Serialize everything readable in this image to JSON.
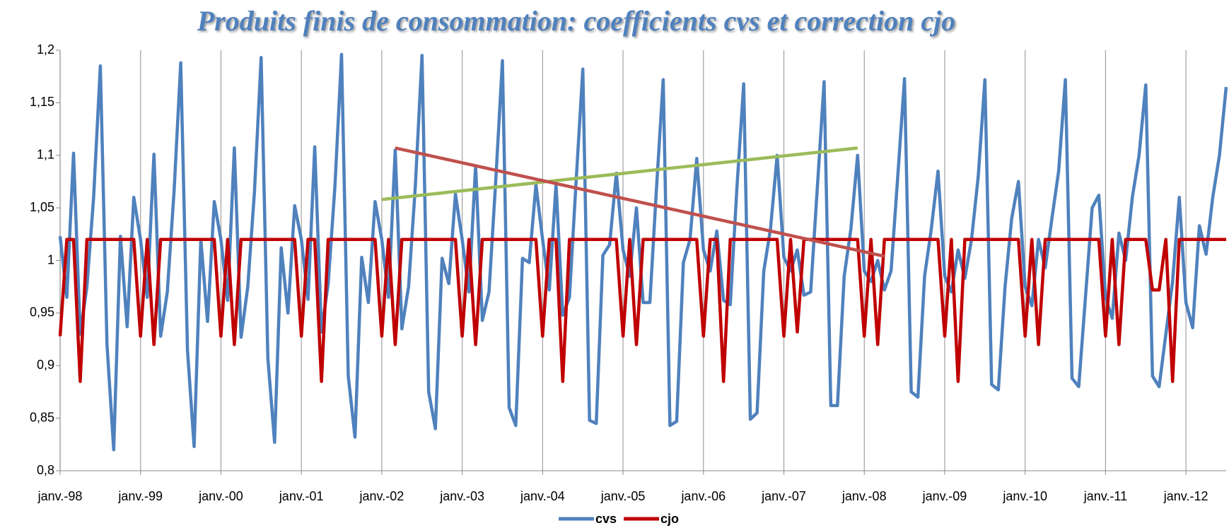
{
  "chart_data": {
    "type": "line",
    "title": "Produits finis de consommation: coefficients cvs et correction cjo",
    "categories": [
      "janv.-98",
      null,
      null,
      null,
      null,
      null,
      null,
      null,
      null,
      null,
      null,
      null,
      "janv.-99",
      null,
      null,
      null,
      null,
      null,
      null,
      null,
      null,
      null,
      null,
      null,
      "janv.-00",
      null,
      null,
      null,
      null,
      null,
      null,
      null,
      null,
      null,
      null,
      null,
      "janv.-01",
      null,
      null,
      null,
      null,
      null,
      null,
      null,
      null,
      null,
      null,
      null,
      "janv.-02",
      null,
      null,
      null,
      null,
      null,
      null,
      null,
      null,
      null,
      null,
      null,
      "janv.-03",
      null,
      null,
      null,
      null,
      null,
      null,
      null,
      null,
      null,
      null,
      null,
      "janv.-04",
      null,
      null,
      null,
      null,
      null,
      null,
      null,
      null,
      null,
      null,
      null,
      "janv.-05",
      null,
      null,
      null,
      null,
      null,
      null,
      null,
      null,
      null,
      null,
      null,
      "janv.-06",
      null,
      null,
      null,
      null,
      null,
      null,
      null,
      null,
      null,
      null,
      null,
      "janv.-07",
      null,
      null,
      null,
      null,
      null,
      null,
      null,
      null,
      null,
      null,
      null,
      "janv.-08",
      null,
      null,
      null,
      null,
      null,
      null,
      null,
      null,
      null,
      null,
      null,
      "janv.-09",
      null,
      null,
      null,
      null,
      null,
      null,
      null,
      null,
      null,
      null,
      null,
      "janv.-10",
      null,
      null,
      null,
      null,
      null,
      null,
      null,
      null,
      null,
      null,
      null,
      "janv.-11",
      null,
      null,
      null,
      null,
      null,
      null,
      null,
      null,
      null,
      null,
      null,
      "janv.-12",
      null,
      null,
      null,
      null,
      null,
      null
    ],
    "series": [
      {
        "name": "cvs",
        "color": "#4f81bd",
        "values": [
          1.023,
          0.965,
          1.102,
          0.93,
          0.975,
          1.06,
          1.185,
          0.92,
          0.82,
          1.023,
          0.937,
          1.06,
          1.02,
          0.965,
          1.101,
          0.928,
          0.97,
          1.065,
          1.188,
          0.915,
          0.823,
          1.02,
          0.942,
          1.056,
          1.02,
          0.962,
          1.107,
          0.927,
          0.975,
          1.065,
          1.193,
          0.907,
          0.827,
          1.012,
          0.95,
          1.052,
          1.02,
          0.963,
          1.108,
          0.932,
          0.978,
          1.07,
          1.196,
          0.89,
          0.832,
          1.003,
          0.96,
          1.056,
          1.02,
          0.965,
          1.105,
          0.935,
          0.975,
          1.07,
          1.195,
          0.875,
          0.84,
          1.002,
          0.978,
          1.063,
          1.02,
          0.97,
          1.09,
          0.943,
          0.97,
          1.075,
          1.19,
          0.86,
          0.843,
          1.002,
          0.998,
          1.072,
          1.02,
          0.972,
          1.072,
          0.948,
          0.965,
          1.075,
          1.182,
          0.848,
          0.845,
          1.005,
          1.015,
          1.083,
          1.01,
          0.985,
          1.05,
          0.96,
          0.96,
          1.07,
          1.172,
          0.843,
          0.847,
          0.998,
          1.02,
          1.097,
          1.01,
          0.99,
          1.028,
          0.962,
          0.958,
          1.07,
          1.168,
          0.849,
          0.855,
          0.99,
          1.03,
          1.1,
          1.003,
          0.99,
          1.01,
          0.967,
          0.97,
          1.07,
          1.17,
          0.862,
          0.862,
          0.985,
          1.03,
          1.1,
          0.99,
          0.98,
          1.0,
          0.972,
          0.99,
          1.08,
          1.173,
          0.875,
          0.87,
          0.985,
          1.03,
          1.085,
          0.985,
          0.97,
          1.01,
          0.983,
          1.02,
          1.08,
          1.172,
          0.882,
          0.877,
          0.975,
          1.04,
          1.075,
          0.975,
          0.957,
          1.02,
          0.993,
          1.04,
          1.085,
          1.172,
          0.888,
          0.88,
          0.965,
          1.05,
          1.062,
          0.965,
          0.945,
          1.026,
          1.0,
          1.06,
          1.1,
          1.167,
          0.89,
          0.88,
          0.93,
          0.98,
          1.06,
          0.96,
          0.936,
          1.033,
          1.006,
          1.06,
          1.1,
          1.165
        ]
      },
      {
        "name": "cjo",
        "color": "#c00000",
        "values": [
          0.928,
          1.02,
          1.02,
          0.885,
          1.02,
          1.02,
          1.02,
          1.02,
          1.02,
          1.02,
          1.02,
          1.02,
          0.928,
          1.02,
          0.92,
          1.02,
          1.02,
          1.02,
          1.02,
          1.02,
          1.02,
          1.02,
          1.02,
          1.02,
          0.928,
          1.02,
          0.92,
          1.02,
          1.02,
          1.02,
          1.02,
          1.02,
          1.02,
          1.02,
          1.02,
          1.02,
          0.928,
          1.02,
          1.02,
          0.885,
          1.02,
          1.02,
          1.02,
          1.02,
          1.02,
          1.02,
          1.02,
          1.02,
          0.928,
          1.02,
          0.92,
          1.02,
          1.02,
          1.02,
          1.02,
          1.02,
          1.02,
          1.02,
          1.02,
          1.02,
          0.928,
          1.02,
          0.92,
          1.02,
          1.02,
          1.02,
          1.02,
          1.02,
          1.02,
          1.02,
          1.02,
          1.02,
          0.928,
          1.02,
          1.02,
          0.885,
          1.02,
          1.02,
          1.02,
          1.02,
          1.02,
          1.02,
          1.02,
          1.02,
          0.928,
          1.02,
          0.92,
          1.02,
          1.02,
          1.02,
          1.02,
          1.02,
          1.02,
          1.02,
          1.02,
          1.02,
          0.928,
          1.02,
          1.02,
          0.885,
          1.02,
          1.02,
          1.02,
          1.02,
          1.02,
          1.02,
          1.02,
          1.02,
          0.928,
          1.02,
          0.932,
          1.02,
          1.02,
          1.02,
          1.02,
          1.02,
          1.02,
          1.02,
          1.02,
          1.02,
          0.928,
          1.02,
          0.92,
          1.02,
          1.02,
          1.02,
          1.02,
          1.02,
          1.02,
          1.02,
          1.02,
          1.02,
          0.928,
          1.02,
          0.885,
          1.02,
          1.02,
          1.02,
          1.02,
          1.02,
          1.02,
          1.02,
          1.02,
          1.02,
          0.928,
          1.02,
          0.92,
          1.02,
          1.02,
          1.02,
          1.02,
          1.02,
          1.02,
          1.02,
          1.02,
          1.02,
          0.928,
          1.02,
          0.92,
          1.02,
          1.02,
          1.02,
          1.02,
          0.972,
          0.972,
          1.02,
          0.885,
          1.02,
          1.02,
          1.02,
          1.02,
          1.02,
          1.02,
          1.02,
          1.02
        ]
      }
    ],
    "trend_lines": [
      {
        "color": "#9bbb59",
        "x": [
          48,
          119
        ],
        "y": [
          1.058,
          1.107
        ]
      },
      {
        "color": "#c0504d",
        "x": [
          50,
          123
        ],
        "y": [
          1.107,
          1.004
        ]
      }
    ],
    "ylim": [
      0.8,
      1.2
    ],
    "yticks": [
      {
        "value": 0.8,
        "label": "0,8"
      },
      {
        "value": 0.85,
        "label": "0,85"
      },
      {
        "value": 0.9,
        "label": "0,9"
      },
      {
        "value": 0.95,
        "label": "0,95"
      },
      1,
      {
        "value": 1.05,
        "label": "1,05"
      },
      {
        "value": 1.1,
        "label": "1,1"
      },
      {
        "value": 1.15,
        "label": "1,15"
      },
      {
        "value": 1.2,
        "label": "1,2"
      }
    ],
    "grid": "vertical",
    "legend": "bottom"
  }
}
